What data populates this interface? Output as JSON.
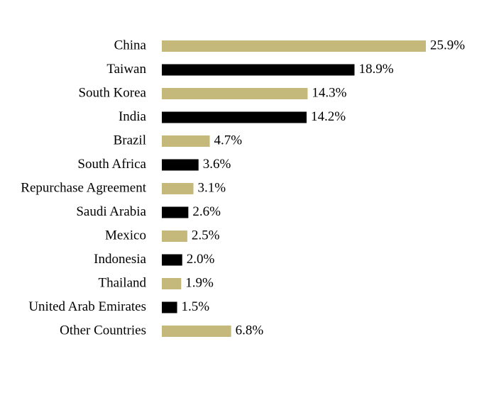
{
  "chart_data": {
    "type": "hbar",
    "categories": [
      "China",
      "Taiwan",
      "South Korea",
      "India",
      "Brazil",
      "South Africa",
      "Repurchase Agreement",
      "Saudi Arabia",
      "Mexico",
      "Indonesia",
      "Thailand",
      "United Arab Emirates",
      "Other Countries"
    ],
    "values": [
      25.9,
      18.9,
      14.3,
      14.2,
      4.7,
      3.6,
      3.1,
      2.6,
      2.5,
      2.0,
      1.9,
      1.5,
      6.8
    ],
    "value_labels": [
      "25.9%",
      "18.9%",
      "14.3%",
      "14.2%",
      "4.7%",
      "3.6%",
      "3.1%",
      "2.6%",
      "2.5%",
      "2.0%",
      "1.9%",
      "1.5%",
      "6.8%"
    ],
    "colors": [
      "#c5b87b",
      "#000000",
      "#c5b87b",
      "#000000",
      "#c5b87b",
      "#000000",
      "#c5b87b",
      "#000000",
      "#c5b87b",
      "#000000",
      "#c5b87b",
      "#000000",
      "#c5b87b"
    ]
  }
}
